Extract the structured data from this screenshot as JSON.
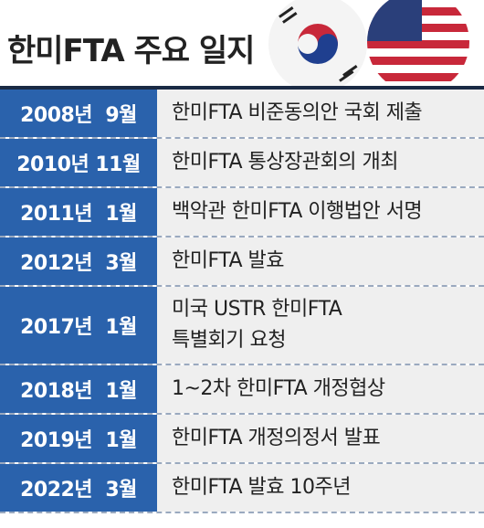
{
  "title": "한미FTA 주요 일지",
  "table": {
    "rows": [
      {
        "date": "2008년  9월",
        "event": [
          "한미FTA 비준동의안 국회 제출"
        ]
      },
      {
        "date": "2010년 11월",
        "event": [
          "한미FTA 통상장관회의 개최"
        ]
      },
      {
        "date": "2011년  1월",
        "event": [
          "백악관 한미FTA 이행법안 서명"
        ]
      },
      {
        "date": "2012년  3월",
        "event": [
          "한미FTA 발효"
        ]
      },
      {
        "date": "2017년  1월",
        "event": [
          "미국 USTR 한미FTA",
          "특별회기 요청"
        ]
      },
      {
        "date": "2018년  1월",
        "event": [
          "1~2차 한미FTA 개정협상"
        ]
      },
      {
        "date": "2019년  1월",
        "event": [
          "한미FTA 개정의정서 발표"
        ]
      },
      {
        "date": "2022년  3월",
        "event": [
          "한미FTA 발효 10주년"
        ]
      }
    ]
  }
}
